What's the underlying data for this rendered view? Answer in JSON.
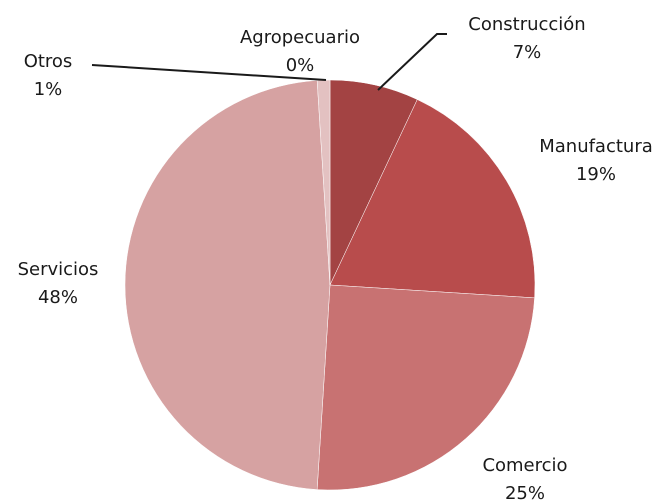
{
  "chart_data": {
    "type": "pie",
    "categories": [
      "Agropecuario",
      "Construcción",
      "Manufactura",
      "Comercio",
      "Servicios",
      "Otros"
    ],
    "values": [
      0,
      7,
      19,
      25,
      48,
      1
    ],
    "value_labels": [
      "0%",
      "7%",
      "19%",
      "25%",
      "48%",
      "1%"
    ],
    "colors": [
      "#7d2e2e",
      "#a34343",
      "#b84c4c",
      "#c87272",
      "#d6a2a2",
      "#e3c1c1"
    ]
  }
}
